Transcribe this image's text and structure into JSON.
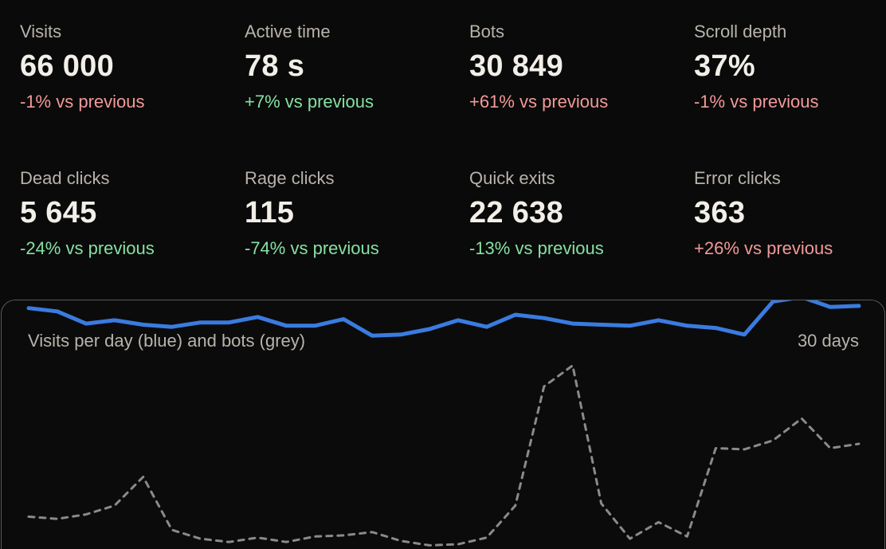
{
  "kpis": [
    {
      "label": "Visits",
      "value": "66 000",
      "delta": "-1% vs previous",
      "trend": "neg"
    },
    {
      "label": "Active time",
      "value": "78 s",
      "delta": "+7% vs previous",
      "trend": "pos"
    },
    {
      "label": "Bots",
      "value": "30 849",
      "delta": "+61% vs previous",
      "trend": "neg"
    },
    {
      "label": "Scroll depth",
      "value": "37%",
      "delta": "-1% vs previous",
      "trend": "neg"
    },
    {
      "label": "Dead clicks",
      "value": "5 645",
      "delta": "-24% vs previous",
      "trend": "pos"
    },
    {
      "label": "Rage clicks",
      "value": "115",
      "delta": "-74% vs previous",
      "trend": "pos"
    },
    {
      "label": "Quick exits",
      "value": "22 638",
      "delta": "-13% vs previous",
      "trend": "pos"
    },
    {
      "label": "Error clicks",
      "value": "363",
      "delta": "+26% vs previous",
      "trend": "neg"
    }
  ],
  "chart": {
    "title": "Visits per day (blue) and bots (grey)",
    "range_label": "30 days"
  },
  "chart_data": {
    "type": "line",
    "x": [
      1,
      2,
      3,
      4,
      5,
      6,
      7,
      8,
      9,
      10,
      11,
      12,
      13,
      14,
      15,
      16,
      17,
      18,
      19,
      20,
      21,
      22,
      23,
      24,
      25,
      26,
      27,
      28,
      29,
      30
    ],
    "series": [
      {
        "color": "#3a7be0",
        "style": "solid",
        "values": [
          2270,
          2240,
          2130,
          2160,
          2120,
          2100,
          2140,
          2140,
          2190,
          2110,
          2110,
          2170,
          2020,
          2030,
          2080,
          2160,
          2100,
          2210,
          2180,
          2130,
          2120,
          2110,
          2160,
          2110,
          2090,
          2030,
          2330,
          2370,
          2280,
          2290
        ]
      },
      {
        "color": "#8a8a8a",
        "style": "dashed",
        "values": [
          380,
          360,
          400,
          480,
          740,
          260,
          180,
          150,
          190,
          150,
          200,
          210,
          240,
          160,
          120,
          130,
          190,
          480,
          1560,
          1750,
          500,
          180,
          330,
          200,
          1000,
          990,
          1070,
          1270,
          1000,
          1040
        ]
      }
    ]
  },
  "colors": {
    "background": "#0a0a0a",
    "negative": "#f29a98",
    "positive": "#86e0a2",
    "visits_line": "#3a7be0",
    "bots_line": "#8a8a8a"
  }
}
